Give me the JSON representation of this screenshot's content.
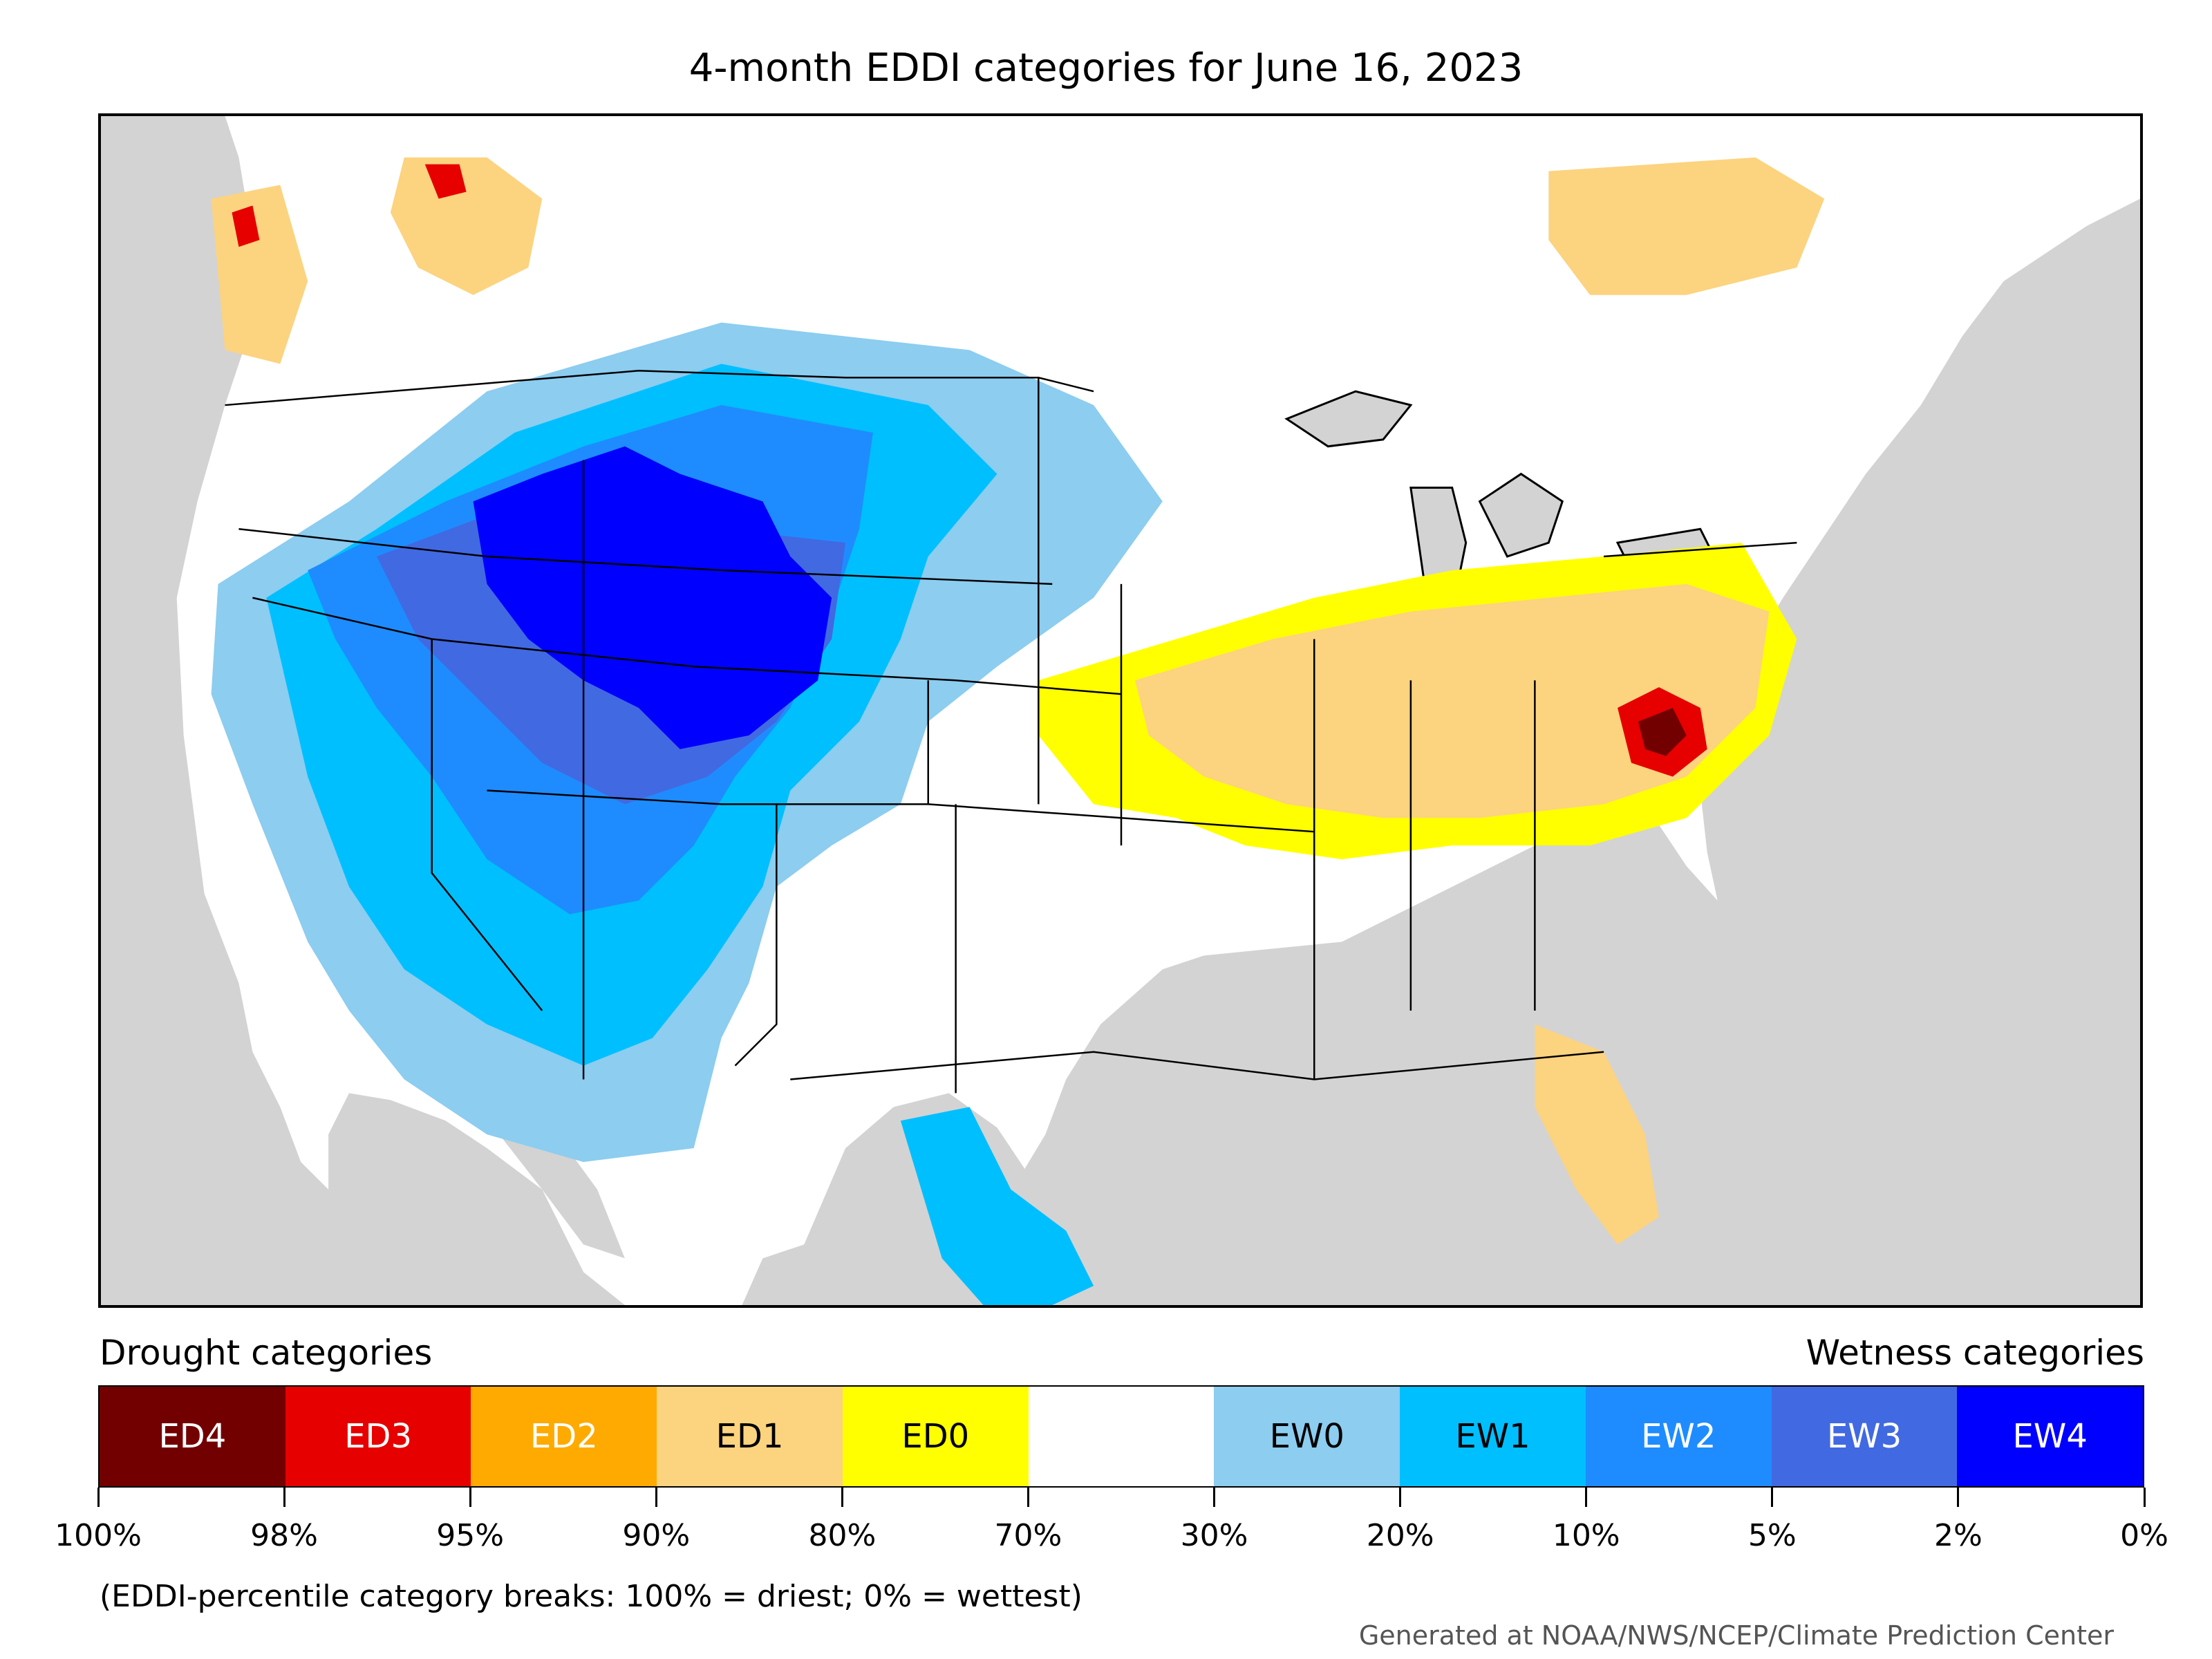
{
  "title": "4-month EDDI categories for June 16, 2023",
  "legend": {
    "drought_header": "Drought categories",
    "wetness_header": "Wetness categories",
    "categories": [
      {
        "label": "ED4",
        "color": "#730000",
        "text_color": "#ffffff"
      },
      {
        "label": "ED3",
        "color": "#e60000",
        "text_color": "#ffffff"
      },
      {
        "label": "ED2",
        "color": "#ffaa00",
        "text_color": "#ffffff"
      },
      {
        "label": "ED1",
        "color": "#fcd37f",
        "text_color": "#000000"
      },
      {
        "label": "ED0",
        "color": "#ffff00",
        "text_color": "#000000"
      },
      {
        "label": "",
        "color": "#ffffff",
        "text_color": "#000000"
      },
      {
        "label": "EW0",
        "color": "#8ccdf0",
        "text_color": "#000000"
      },
      {
        "label": "EW1",
        "color": "#00bfff",
        "text_color": "#000000"
      },
      {
        "label": "EW2",
        "color": "#1e8cff",
        "text_color": "#ffffff"
      },
      {
        "label": "EW3",
        "color": "#4169e1",
        "text_color": "#ffffff"
      },
      {
        "label": "EW4",
        "color": "#0000ff",
        "text_color": "#ffffff"
      }
    ],
    "breaks": [
      "100%",
      "98%",
      "95%",
      "90%",
      "80%",
      "70%",
      "30%",
      "20%",
      "10%",
      "5%",
      "2%",
      "0%"
    ]
  },
  "note": "(EDDI-percentile category breaks: 100% = driest; 0% = wettest)",
  "credit": "Generated at NOAA/NWS/NCEP/Climate Prediction Center",
  "colors": {
    "ocean": "#d3d3d3",
    "land": "#ffffff",
    "borders": "#000000"
  }
}
